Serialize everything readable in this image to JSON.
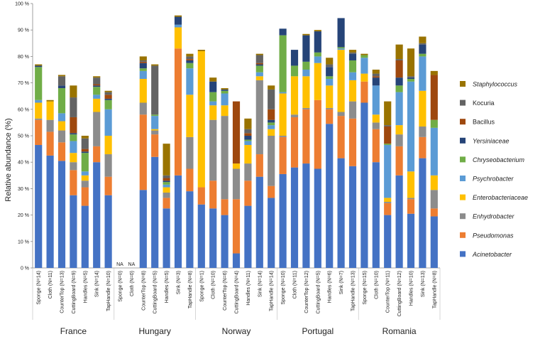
{
  "chart_data": {
    "type": "bar",
    "stacked": true,
    "ylabel": "Relative abundance (%)",
    "ylim": [
      0,
      100
    ],
    "y_ticks": [
      "0 %",
      "10 %",
      "20 %",
      "30 %",
      "40 %",
      "50 %",
      "60 %",
      "70 %",
      "80 %",
      "90 %",
      "100 %"
    ],
    "grid": false,
    "legend_position": "right",
    "series": [
      {
        "name": "Acinetobacter",
        "italic": true,
        "color": "#4472C4"
      },
      {
        "name": "Pseudomonas",
        "italic": true,
        "color": "#ED7D31"
      },
      {
        "name": "Enhydrobacter",
        "italic": true,
        "color": "#8C8C8C"
      },
      {
        "name": "Enterobacteriaceae",
        "italic": true,
        "color": "#FFC000"
      },
      {
        "name": "Psychrobacter",
        "italic": true,
        "color": "#5B9BD5"
      },
      {
        "name": "Chryseobacterium",
        "italic": true,
        "color": "#70AD47"
      },
      {
        "name": "Yersiniaceae",
        "italic": true,
        "color": "#264478"
      },
      {
        "name": "Bacillus",
        "italic": false,
        "color": "#9E480E"
      },
      {
        "name": "Kocuria",
        "italic": false,
        "color": "#636363"
      },
      {
        "name": "Staphylococcus",
        "italic": true,
        "color": "#997300"
      }
    ],
    "groups": [
      {
        "name": "France",
        "categories": [
          {
            "label": "Sponge (N=14)",
            "values": [
              46.5,
              9.5,
              0.5,
              6.0,
              1.0,
              12.5,
              0.5,
              0,
              0,
              0.5
            ]
          },
          {
            "label": "Cloth (N=11)",
            "values": [
              42.5,
              9.0,
              4.5,
              7.0,
              0,
              0,
              0,
              0,
              0,
              0.5
            ]
          },
          {
            "label": "CounterTop (N=13)",
            "values": [
              40.5,
              7.0,
              4.5,
              3.5,
              3.0,
              9.5,
              1.0,
              0,
              3.5,
              0.5
            ]
          },
          {
            "label": "CuttingBoard (N=9)",
            "values": [
              27.5,
              9.5,
              3.0,
              3.5,
              4.5,
              2.5,
              0.5,
              6.0,
              7.5,
              4.5
            ]
          },
          {
            "label": "Handles (N=5)",
            "values": [
              23.5,
              7.0,
              2.5,
              2.0,
              1.5,
              7.0,
              0.5,
              1.0,
              4.0,
              1.0
            ]
          },
          {
            "label": "Sink (N=14)",
            "values": [
              40.0,
              6.0,
              13.0,
              5.0,
              1.5,
              3.0,
              0.5,
              0.5,
              2.5,
              0.5
            ]
          },
          {
            "label": "TapHandle (N=10)",
            "values": [
              27.5,
              7.0,
              8.5,
              7.0,
              10.0,
              3.5,
              0.5,
              1.5,
              1.0,
              0.5
            ]
          }
        ]
      },
      {
        "name": "Hungary",
        "categories": [
          {
            "label": "Sponge (N=0)",
            "na": true,
            "values": [
              0,
              0,
              0,
              0,
              0,
              0,
              0,
              0,
              0,
              0
            ]
          },
          {
            "label": "Cloth (N=0)",
            "na": true,
            "values": [
              0,
              0,
              0,
              0,
              0,
              0,
              0,
              0,
              0,
              0
            ]
          },
          {
            "label": "CounterTop (N=8)",
            "values": [
              29.5,
              28.5,
              4.5,
              9.0,
              3.0,
              1.0,
              2.0,
              0.5,
              0.5,
              1.5
            ]
          },
          {
            "label": "CuttingBoard (N=5)",
            "values": [
              42.0,
              8.5,
              1.5,
              0.5,
              5.0,
              0.5,
              0,
              0,
              18.5,
              0.5
            ]
          },
          {
            "label": "Handles (N=5)",
            "values": [
              22.5,
              4.0,
              2.0,
              2.0,
              1.0,
              1.0,
              0.5,
              1.0,
              1.0,
              12.0
            ]
          },
          {
            "label": "Sink (N=3)",
            "values": [
              35.0,
              48.0,
              0,
              8.0,
              1.0,
              0,
              3.0,
              0,
              0,
              0.5
            ]
          },
          {
            "label": "TapHandle (N=8)",
            "values": [
              29.0,
              8.5,
              12.0,
              16.0,
              10.0,
              2.0,
              1.0,
              0.5,
              1.0,
              1.0
            ]
          }
        ]
      },
      {
        "name": "Norway",
        "categories": [
          {
            "label": "Sponge (N=1)",
            "values": [
              24.0,
              6.5,
              0,
              51.5,
              0,
              0,
              0,
              0,
              0,
              0.5
            ]
          },
          {
            "label": "Cloth (N=10)",
            "values": [
              22.5,
              10.5,
              23.0,
              5.5,
              1.5,
              3.5,
              4.0,
              0,
              0,
              1.5
            ]
          },
          {
            "label": "CounterTop (N=6)",
            "values": [
              20.0,
              6.0,
              31.5,
              4.0,
              4.5,
              1.0,
              0.5,
              0,
              0,
              0.5
            ]
          },
          {
            "label": "CuttingBoard (N=4)",
            "values": [
              5.5,
              20.5,
              11.5,
              2.0,
              0,
              0,
              0,
              23.5,
              0,
              0
            ]
          },
          {
            "label": "Handles (N=11)",
            "values": [
              23.5,
              9.5,
              6.5,
              7.0,
              1.5,
              0.5,
              1.5,
              1.0,
              1.5,
              4.0
            ]
          },
          {
            "label": "Sink (N=14)",
            "values": [
              34.5,
              8.5,
              28.0,
              1.5,
              1.5,
              2.5,
              0.5,
              0.5,
              3.0,
              0.5
            ]
          },
          {
            "label": "TapHandle (N=14)",
            "values": [
              26.5,
              4.5,
              19.0,
              2.5,
              1.5,
              1.0,
              1.0,
              4.0,
              7.5,
              1.5
            ]
          }
        ]
      },
      {
        "name": "Portugal",
        "categories": [
          {
            "label": "Sponge (N=10)",
            "values": [
              35.5,
              14.0,
              0.5,
              16.0,
              0.5,
              21.5,
              2.5,
              0,
              0,
              0
            ]
          },
          {
            "label": "Cloth (N=11)",
            "values": [
              38.0,
              19.0,
              1.0,
              14.5,
              0,
              4.0,
              6.0,
              0,
              0,
              0
            ]
          },
          {
            "label": "CounterTop (N=12)",
            "values": [
              39.5,
              20.5,
              0.5,
              12.0,
              2.5,
              3.0,
              10.0,
              0,
              0,
              0.5
            ]
          },
          {
            "label": "CuttingBoard (N=5)",
            "values": [
              37.5,
              26.0,
              0,
              14.0,
              2.5,
              1.5,
              8.0,
              0,
              0,
              0.5
            ]
          },
          {
            "label": "Handles (N=6)",
            "values": [
              54.5,
              5.5,
              0.5,
              8.5,
              2.5,
              1.0,
              3.5,
              0,
              1.0,
              2.5
            ]
          },
          {
            "label": "Sink (N=7)",
            "values": [
              41.5,
              16.0,
              1.5,
              23.5,
              0.5,
              0.5,
              11.0,
              0,
              0,
              0
            ]
          },
          {
            "label": "TapHandle (N=13)",
            "values": [
              38.5,
              18.0,
              6.5,
              8.0,
              3.0,
              4.5,
              2.5,
              0,
              0.5,
              1.0
            ]
          }
        ]
      },
      {
        "name": "Romania",
        "categories": [
          {
            "label": "Sponge (N=15)",
            "values": [
              62.5,
              8.0,
              0,
              3.0,
              6.0,
              1.0,
              0,
              0,
              0,
              0.5
            ]
          },
          {
            "label": "Cloth (N=10)",
            "values": [
              40.0,
              12.5,
              2.5,
              3.0,
              11.0,
              0,
              3.0,
              0.5,
              1.0,
              1.5
            ]
          },
          {
            "label": "CounterTop (N=11)",
            "values": [
              20.0,
              4.5,
              0.5,
              1.5,
              20.0,
              0.5,
              0,
              6.5,
              0.5,
              9.0
            ]
          },
          {
            "label": "CuttingBoard (N=12)",
            "values": [
              35.0,
              11.0,
              4.5,
              3.5,
              12.5,
              2.5,
              3.0,
              6.5,
              0.5,
              5.5
            ]
          },
          {
            "label": "Handles (N=10)",
            "values": [
              20.5,
              5.5,
              0.5,
              10.0,
              34.0,
              1.0,
              0.5,
              0,
              0.5,
              10.5
            ]
          },
          {
            "label": "Sink (N=13)",
            "values": [
              41.5,
              8.0,
              4.0,
              13.5,
              13.0,
              1.0,
              3.5,
              0,
              0.5,
              2.5
            ]
          },
          {
            "label": "TapHandle (N=8)",
            "values": [
              19.5,
              3.0,
              7.0,
              5.5,
              18.0,
              3.0,
              0,
              17.0,
              0,
              1.5
            ]
          }
        ]
      }
    ],
    "na_label": "NA"
  }
}
